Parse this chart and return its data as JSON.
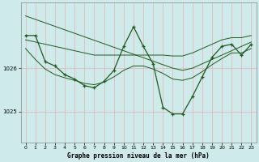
{
  "title": "Graphe pression niveau de la mer (hPa)",
  "bg_color": "#ceeaea",
  "grid_color": "#e8b0b0",
  "line_color": "#1e5c1e",
  "ylim": [
    1024.3,
    1027.5
  ],
  "yticks": [
    1025,
    1026
  ],
  "xlim": [
    -0.5,
    23.5
  ],
  "xticks": [
    0,
    1,
    2,
    3,
    4,
    5,
    6,
    7,
    8,
    9,
    10,
    11,
    12,
    13,
    14,
    15,
    16,
    17,
    18,
    19,
    20,
    21,
    22,
    23
  ],
  "series": {
    "main": [
      1026.75,
      1026.75,
      1026.15,
      1026.05,
      1025.85,
      1025.75,
      1025.6,
      1025.55,
      1025.7,
      1025.95,
      1026.5,
      1026.95,
      1026.5,
      1026.1,
      1025.1,
      1024.95,
      1024.95,
      1025.35,
      1025.8,
      1026.25,
      1026.5,
      1026.55,
      1026.3,
      1026.55
    ],
    "trend1": [
      1027.2,
      1027.12,
      1027.04,
      1026.96,
      1026.88,
      1026.8,
      1026.72,
      1026.64,
      1026.56,
      1026.48,
      1026.4,
      1026.32,
      1026.24,
      1026.16,
      1026.08,
      1026.0,
      1025.95,
      1026.0,
      1026.1,
      1026.2,
      1026.3,
      1026.4,
      1026.5,
      1026.6
    ],
    "trend2": [
      1026.65,
      1026.6,
      1026.55,
      1026.5,
      1026.45,
      1026.4,
      1026.35,
      1026.3,
      1026.3,
      1026.3,
      1026.3,
      1026.3,
      1026.3,
      1026.3,
      1026.3,
      1026.28,
      1026.28,
      1026.35,
      1026.45,
      1026.55,
      1026.65,
      1026.7,
      1026.7,
      1026.75
    ],
    "trend3": [
      1026.45,
      1026.2,
      1025.98,
      1025.85,
      1025.78,
      1025.72,
      1025.65,
      1025.62,
      1025.68,
      1025.8,
      1025.95,
      1026.05,
      1026.05,
      1025.98,
      1025.88,
      1025.75,
      1025.72,
      1025.78,
      1025.92,
      1026.08,
      1026.22,
      1026.35,
      1026.35,
      1026.45
    ]
  }
}
